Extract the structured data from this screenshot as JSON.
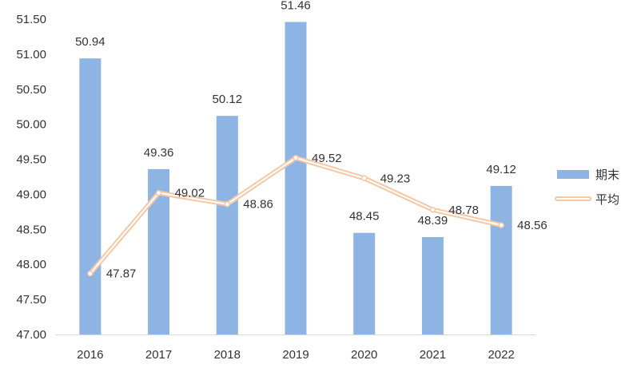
{
  "chart_data": {
    "type": "bar+line",
    "title": "",
    "xlabel": "",
    "ylabel": "",
    "categories": [
      "2016",
      "2017",
      "2018",
      "2019",
      "2020",
      "2021",
      "2022"
    ],
    "ylim": [
      47.0,
      51.5
    ],
    "yticks": [
      "47.00",
      "47.50",
      "48.00",
      "48.50",
      "49.00",
      "49.50",
      "50.00",
      "50.50",
      "51.00",
      "51.50"
    ],
    "grid": false,
    "legend_position": "right",
    "series": [
      {
        "name": "期末",
        "type": "bar",
        "color": "#8EB4E3",
        "values": [
          50.94,
          49.36,
          50.12,
          51.46,
          48.45,
          48.39,
          49.12
        ],
        "labels": [
          "50.94",
          "49.36",
          "50.12",
          "51.46",
          "48.45",
          "48.39",
          "49.12"
        ]
      },
      {
        "name": "平均",
        "type": "line",
        "color": "#F5C7A5",
        "values": [
          47.87,
          49.02,
          48.86,
          49.52,
          49.23,
          48.78,
          48.56
        ],
        "labels": [
          "47.87",
          "49.02",
          "48.86",
          "49.52",
          "49.23",
          "48.78",
          "48.56"
        ]
      }
    ]
  }
}
